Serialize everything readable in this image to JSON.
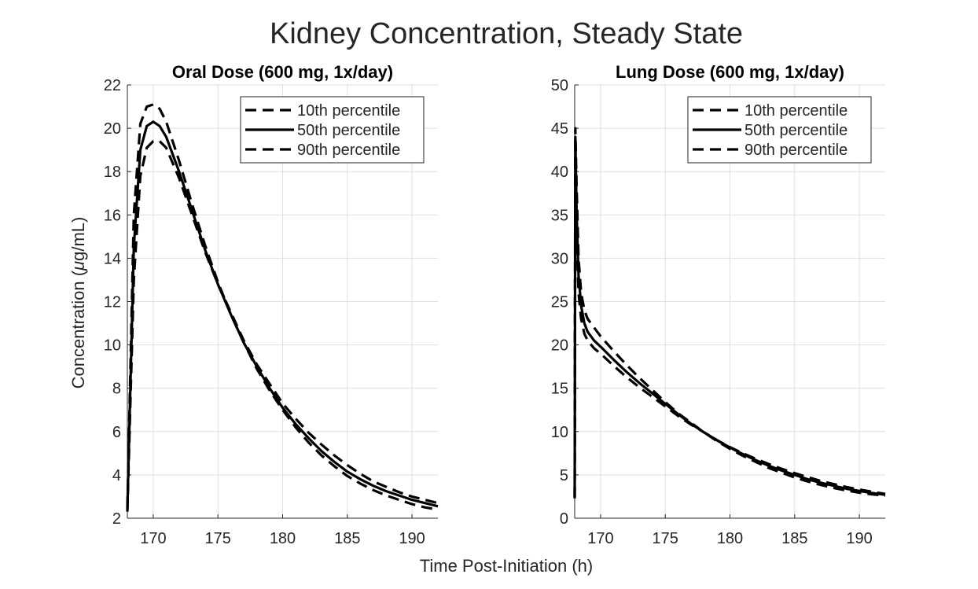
{
  "figure": {
    "title": "Kidney Concentration, Steady State",
    "xlabel": "Time Post-Initiation (h)",
    "ylabel_prefix": "Concentration  (",
    "ylabel_mu": "μ",
    "ylabel_suffix": "g/mL)"
  },
  "chart_data": [
    {
      "type": "line",
      "title": "Oral Dose (600 mg, 1x/day)",
      "xlim": [
        168,
        192
      ],
      "ylim": [
        2,
        22
      ],
      "xticks": [
        170,
        175,
        180,
        185,
        190
      ],
      "yticks": [
        2,
        4,
        6,
        8,
        10,
        12,
        14,
        16,
        18,
        20,
        22
      ],
      "grid": true,
      "legend_position": "top-right",
      "x": [
        168,
        168.5,
        169,
        169.5,
        170,
        170.5,
        171,
        172,
        173,
        174,
        175,
        176,
        177,
        178,
        179,
        180,
        181,
        182,
        183,
        184,
        185,
        186,
        187,
        188,
        189,
        190,
        191,
        192
      ],
      "series": [
        {
          "name": "10th  percentile",
          "style": "dashed",
          "values": [
            2.5,
            16.0,
            20.2,
            21.0,
            21.1,
            20.9,
            20.3,
            18.5,
            16.5,
            14.6,
            12.9,
            11.4,
            10.1,
            8.9,
            7.9,
            7.0,
            6.2,
            5.5,
            4.9,
            4.4,
            3.95,
            3.6,
            3.3,
            3.05,
            2.85,
            2.65,
            2.5,
            2.4
          ]
        },
        {
          "name": "50th  percentile",
          "style": "solid",
          "values": [
            2.4,
            14.5,
            19.0,
            20.1,
            20.3,
            20.1,
            19.6,
            18.0,
            16.2,
            14.4,
            12.8,
            11.4,
            10.1,
            9.0,
            8.0,
            7.1,
            6.35,
            5.7,
            5.1,
            4.6,
            4.15,
            3.8,
            3.5,
            3.25,
            3.05,
            2.85,
            2.7,
            2.55
          ]
        },
        {
          "name": "90th  percentile",
          "style": "dashed",
          "values": [
            2.3,
            13.0,
            17.8,
            19.1,
            19.4,
            19.4,
            19.1,
            17.7,
            16.0,
            14.3,
            12.8,
            11.5,
            10.2,
            9.1,
            8.2,
            7.3,
            6.6,
            5.95,
            5.4,
            4.9,
            4.45,
            4.05,
            3.7,
            3.45,
            3.2,
            3.0,
            2.85,
            2.7
          ]
        }
      ]
    },
    {
      "type": "line",
      "title": "Lung Dose (600 mg, 1x/day)",
      "xlim": [
        168,
        192
      ],
      "ylim": [
        0,
        50
      ],
      "xticks": [
        170,
        175,
        180,
        185,
        190
      ],
      "yticks": [
        0,
        5,
        10,
        15,
        20,
        25,
        30,
        35,
        40,
        45,
        50
      ],
      "grid": true,
      "legend_position": "top-right",
      "x": [
        168,
        168.05,
        168.15,
        168.3,
        168.5,
        168.75,
        169,
        169.5,
        170,
        171,
        172,
        173,
        174,
        175,
        176,
        177,
        178,
        179,
        180,
        181,
        182,
        183,
        184,
        185,
        186,
        187,
        188,
        189,
        190,
        191,
        192
      ],
      "series": [
        {
          "name": "10th  percentile",
          "style": "dashed",
          "values": [
            2.5,
            45.0,
            38.0,
            30.0,
            26.0,
            24.0,
            23.0,
            22.0,
            21.0,
            19.3,
            17.7,
            16.2,
            14.8,
            13.4,
            12.1,
            11.0,
            9.9,
            8.9,
            8.0,
            7.2,
            6.5,
            5.8,
            5.25,
            4.7,
            4.25,
            3.85,
            3.5,
            3.2,
            2.95,
            2.75,
            2.6
          ]
        },
        {
          "name": "50th  percentile",
          "style": "solid",
          "values": [
            2.4,
            44.0,
            35.0,
            28.0,
            24.5,
            22.5,
            21.5,
            20.5,
            19.8,
            18.3,
            16.9,
            15.6,
            14.4,
            13.2,
            12.0,
            10.9,
            9.9,
            9.0,
            8.15,
            7.4,
            6.7,
            6.05,
            5.5,
            5.0,
            4.5,
            4.1,
            3.75,
            3.4,
            3.15,
            2.9,
            2.7
          ]
        },
        {
          "name": "90th  percentile",
          "style": "dashed",
          "values": [
            2.3,
            43.0,
            33.0,
            26.0,
            23.0,
            21.3,
            20.5,
            19.6,
            19.0,
            17.6,
            16.3,
            15.1,
            14.0,
            12.9,
            11.8,
            10.8,
            9.9,
            9.0,
            8.2,
            7.5,
            6.85,
            6.25,
            5.7,
            5.2,
            4.75,
            4.3,
            3.95,
            3.6,
            3.3,
            3.05,
            2.8
          ]
        }
      ]
    }
  ]
}
